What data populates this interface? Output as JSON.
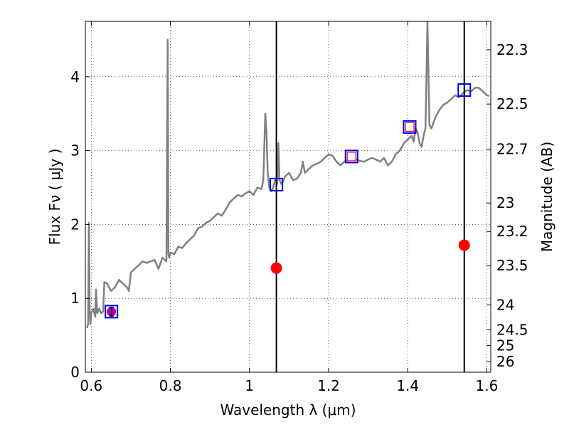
{
  "chart_data": {
    "type": "line",
    "title": "",
    "xlabel": "Wavelength  λ (μm)",
    "ylabel": "Flux  Fν  ( μJy )",
    "y2label": "Magnitude (AB)",
    "xlim": [
      0.585,
      1.61
    ],
    "ylim": [
      0,
      4.75
    ],
    "grid": true,
    "x_ticks": [
      {
        "value": 0.6,
        "label": "0.6"
      },
      {
        "value": 0.8,
        "label": "0.8"
      },
      {
        "value": 1.0,
        "label": "1"
      },
      {
        "value": 1.2,
        "label": "1.2"
      },
      {
        "value": 1.4,
        "label": "1.4"
      },
      {
        "value": 1.6,
        "label": "1.6"
      }
    ],
    "y_ticks": [
      {
        "value": 0,
        "label": "0"
      },
      {
        "value": 1,
        "label": "1"
      },
      {
        "value": 2,
        "label": "2"
      },
      {
        "value": 3,
        "label": "3"
      },
      {
        "value": 4,
        "label": "4"
      }
    ],
    "mag_ticks": [
      {
        "value": 22.3,
        "label": "22.3"
      },
      {
        "value": 22.5,
        "label": "22.5"
      },
      {
        "value": 22.7,
        "label": "22.7"
      },
      {
        "value": 23,
        "label": "23"
      },
      {
        "value": 23.2,
        "label": "23.2"
      },
      {
        "value": 23.5,
        "label": "23.5"
      },
      {
        "value": 24,
        "label": "24"
      },
      {
        "value": 24.5,
        "label": "24.5"
      },
      {
        "value": 25,
        "label": "25"
      },
      {
        "value": 26,
        "label": "26"
      }
    ],
    "spectrum": {
      "color": "#808080",
      "x": [
        0.589,
        0.592,
        0.594,
        0.596,
        0.598,
        0.6,
        0.605,
        0.61,
        0.612,
        0.615,
        0.62,
        0.625,
        0.63,
        0.633,
        0.64,
        0.65,
        0.66,
        0.67,
        0.68,
        0.69,
        0.695,
        0.7,
        0.71,
        0.72,
        0.73,
        0.74,
        0.75,
        0.76,
        0.77,
        0.78,
        0.79,
        0.793,
        0.795,
        0.797,
        0.8,
        0.81,
        0.82,
        0.83,
        0.84,
        0.85,
        0.86,
        0.87,
        0.88,
        0.89,
        0.9,
        0.91,
        0.92,
        0.93,
        0.94,
        0.95,
        0.96,
        0.97,
        0.98,
        0.99,
        1.0,
        1.01,
        1.02,
        1.03,
        1.035,
        1.04,
        1.043,
        1.046,
        1.05,
        1.055,
        1.06,
        1.065,
        1.07,
        1.073,
        1.076,
        1.08,
        1.085,
        1.09,
        1.1,
        1.11,
        1.12,
        1.13,
        1.135,
        1.14,
        1.15,
        1.16,
        1.17,
        1.18,
        1.19,
        1.2,
        1.21,
        1.22,
        1.23,
        1.24,
        1.25,
        1.26,
        1.27,
        1.28,
        1.29,
        1.3,
        1.31,
        1.32,
        1.33,
        1.34,
        1.35,
        1.36,
        1.37,
        1.38,
        1.39,
        1.4,
        1.41,
        1.415,
        1.42,
        1.425,
        1.43,
        1.435,
        1.44,
        1.445,
        1.45,
        1.455,
        1.46,
        1.47,
        1.48,
        1.49,
        1.5,
        1.51,
        1.52,
        1.53,
        1.54,
        1.55,
        1.56,
        1.57,
        1.58,
        1.59,
        1.6,
        1.606
      ],
      "y": [
        0.6,
        0.65,
        2.02,
        0.85,
        0.65,
        0.8,
        0.86,
        0.75,
        1.12,
        0.8,
        0.86,
        0.8,
        0.82,
        1.22,
        1.2,
        1.1,
        1.15,
        1.25,
        1.2,
        1.15,
        1.1,
        1.35,
        1.4,
        1.45,
        1.5,
        1.48,
        1.5,
        1.52,
        1.4,
        1.55,
        1.5,
        4.5,
        1.6,
        1.55,
        1.62,
        1.6,
        1.7,
        1.68,
        1.75,
        1.8,
        1.85,
        1.95,
        1.97,
        2.02,
        2.05,
        2.1,
        2.15,
        2.12,
        2.2,
        2.3,
        2.35,
        2.4,
        2.38,
        2.42,
        2.45,
        2.4,
        2.5,
        2.48,
        2.6,
        3.5,
        3.25,
        2.7,
        2.5,
        2.45,
        2.5,
        2.6,
        2.55,
        3.1,
        2.6,
        2.55,
        2.58,
        2.65,
        2.7,
        2.6,
        2.62,
        2.7,
        2.85,
        2.7,
        2.75,
        2.8,
        2.82,
        2.85,
        2.9,
        2.95,
        2.93,
        2.85,
        2.8,
        2.85,
        2.88,
        2.9,
        2.88,
        2.86,
        2.85,
        2.88,
        2.9,
        2.88,
        2.85,
        2.9,
        2.8,
        2.85,
        2.95,
        3.0,
        3.1,
        3.15,
        3.2,
        3.12,
        3.3,
        3.25,
        3.1,
        3.05,
        3.2,
        3.3,
        4.75,
        3.35,
        3.3,
        3.45,
        3.55,
        3.62,
        3.65,
        3.7,
        3.75,
        3.72,
        3.78,
        3.82,
        3.8,
        3.85,
        3.85,
        3.8,
        3.75,
        3.74
      ]
    },
    "vertical_lines": [
      1.068,
      1.543
    ],
    "points": [
      {
        "name": "square-0",
        "x": 0.651,
        "y": 0.82,
        "edge": "#0000ff",
        "fill": "none"
      },
      {
        "name": "square-1",
        "x": 1.068,
        "y": 2.54,
        "edge": "#0000ff",
        "fill": "none"
      },
      {
        "name": "square-2",
        "x": 1.258,
        "y": 2.92,
        "edge": "#0000ff",
        "fill": "none"
      },
      {
        "name": "square-3",
        "x": 1.405,
        "y": 3.32,
        "edge": "#0000ff",
        "fill": "none"
      },
      {
        "name": "square-4",
        "x": 1.543,
        "y": 3.82,
        "edge": "#0000ff",
        "fill": "none"
      },
      {
        "name": "inner-square-2",
        "x": 1.258,
        "y": 2.92,
        "edge": "#ff0000",
        "fill": "#ffffff"
      },
      {
        "name": "inner-square-3",
        "x": 1.405,
        "y": 3.32,
        "edge": "#ff0000",
        "fill": "#ffffff"
      },
      {
        "name": "magenta-point",
        "x": 0.651,
        "y": 0.82,
        "color": "#b000b0",
        "yerr": 0.06
      },
      {
        "name": "red-point-1",
        "x": 1.068,
        "y": 1.41,
        "color": "#ff0000"
      },
      {
        "name": "red-point-2",
        "x": 1.543,
        "y": 1.72,
        "color": "#ff0000"
      }
    ]
  }
}
